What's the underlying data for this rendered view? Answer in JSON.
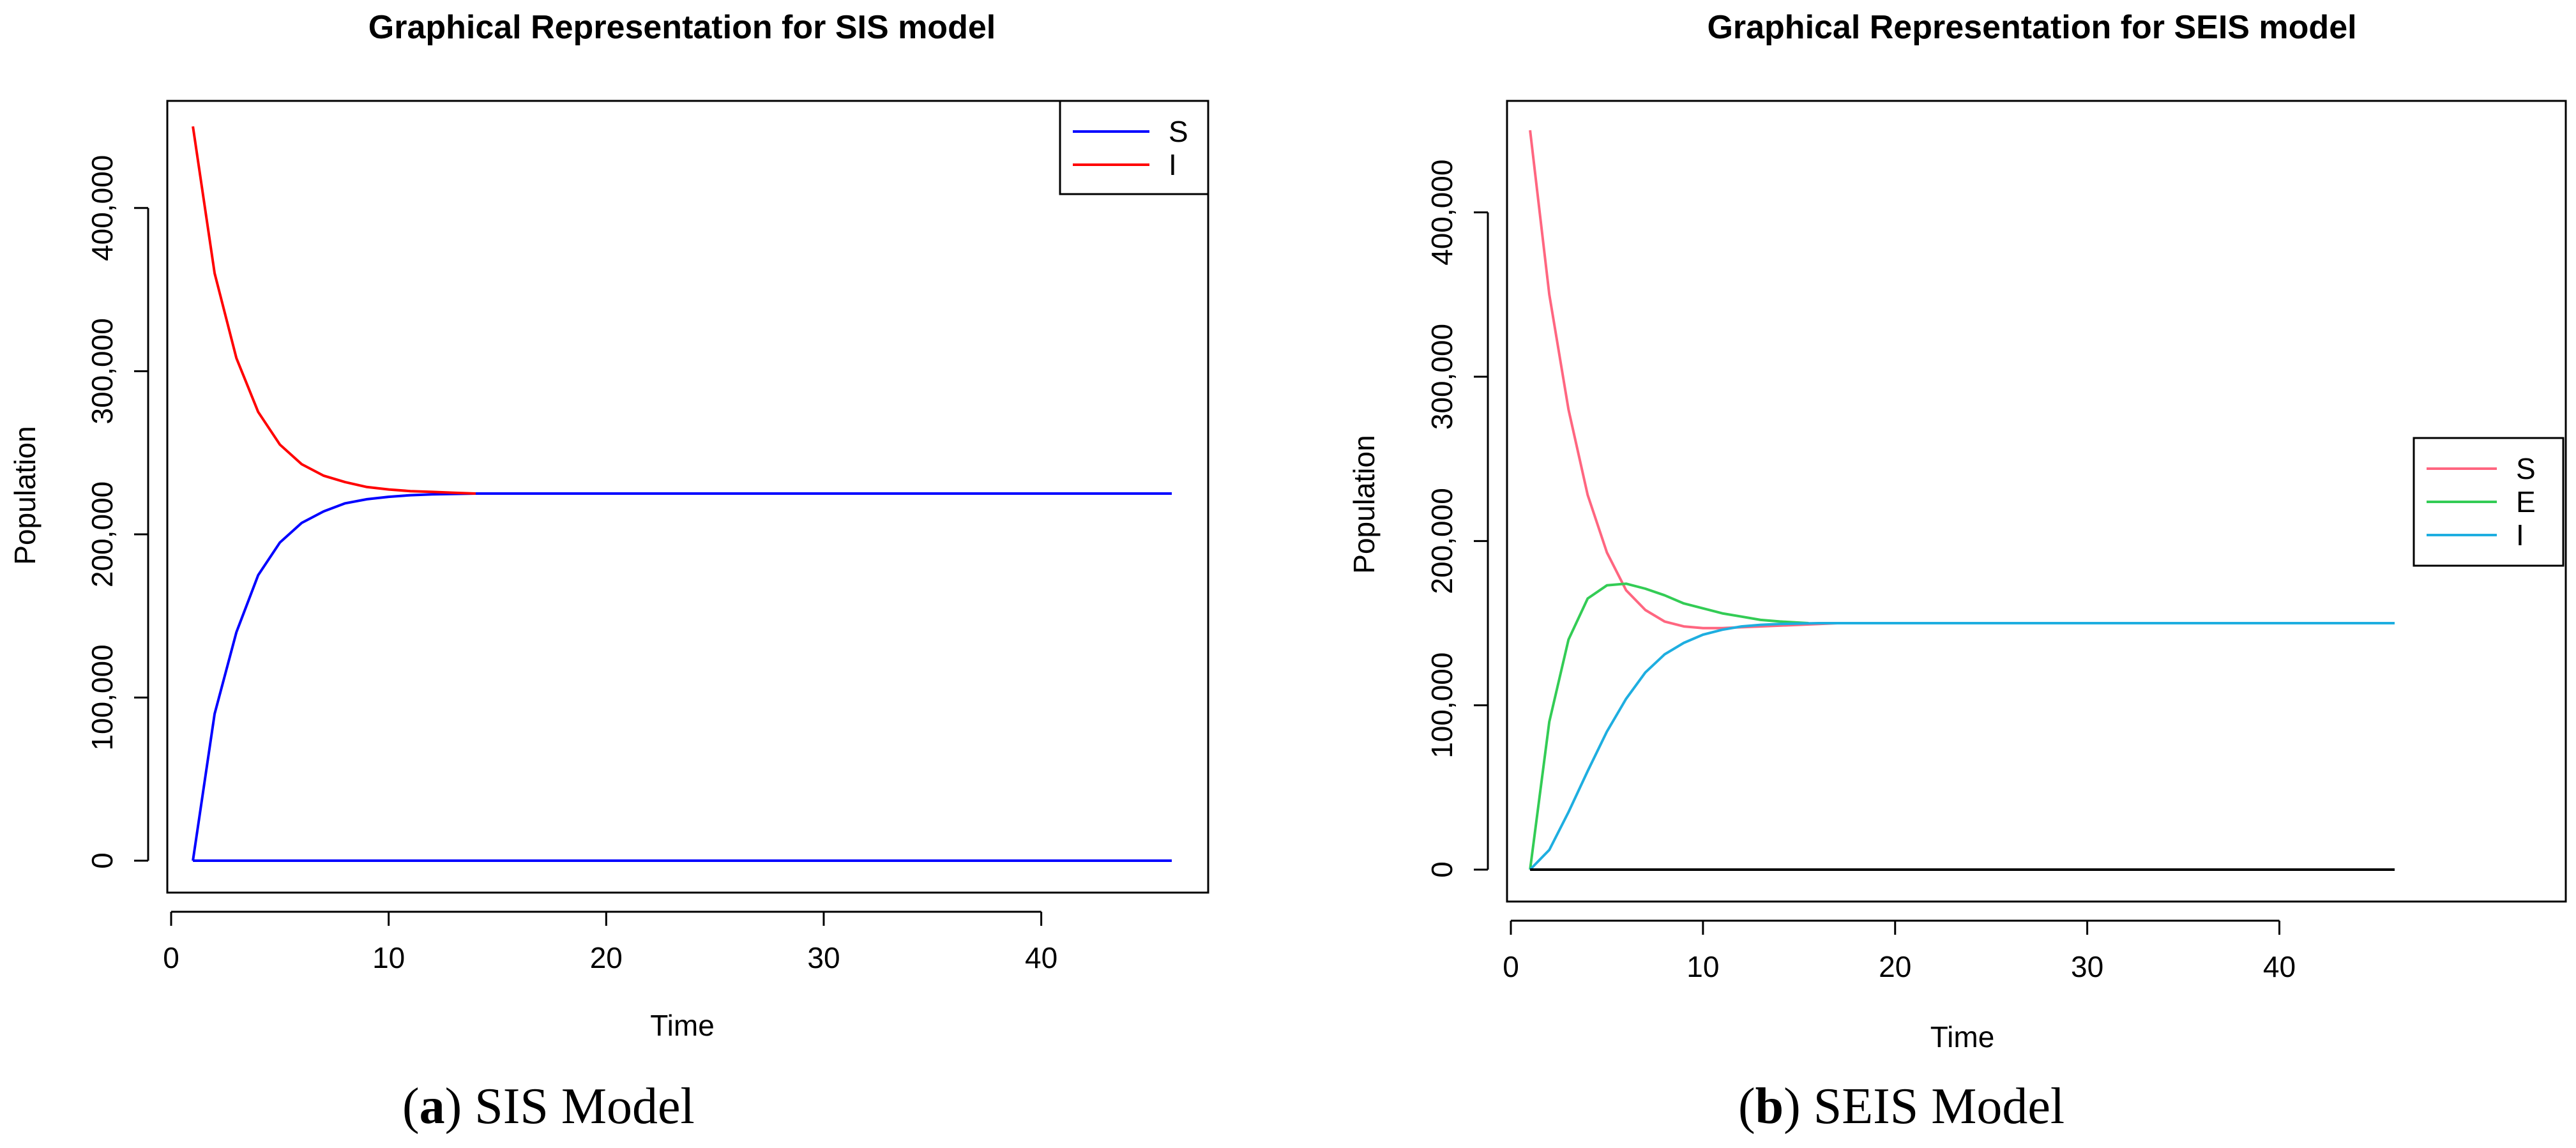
{
  "figure": {
    "caption_a_letter": "a",
    "caption_a_text": "SIS Model",
    "caption_b_letter": "b",
    "caption_b_text": "SEIS Model"
  },
  "chart_data": [
    {
      "type": "line",
      "title": "Graphical Representation for SIS model",
      "xlabel": "Time",
      "ylabel": "Population",
      "xlim": [
        0,
        46
      ],
      "ylim": [
        0,
        450000
      ],
      "xticks": [
        0,
        10,
        20,
        30,
        40
      ],
      "xtick_labels": [
        "0",
        "10",
        "20",
        "30",
        "40"
      ],
      "yticks": [
        0,
        100000,
        200000,
        300000,
        400000
      ],
      "ytick_labels": [
        "0",
        "100,000",
        "200,000",
        "300,000",
        "400,000"
      ],
      "grid": false,
      "legend": {
        "position": "top-right",
        "entries": [
          {
            "label": "S",
            "color": "#0000ff"
          },
          {
            "label": "I",
            "color": "#ff0000"
          }
        ]
      },
      "series": [
        {
          "name": "S",
          "color": "#0000ff",
          "x": [
            1,
            2,
            3,
            4,
            5,
            6,
            7,
            8,
            9,
            10,
            11,
            12,
            14,
            16,
            20,
            46
          ],
          "values": [
            0,
            90000,
            140000,
            175000,
            195000,
            207000,
            214000,
            219000,
            221500,
            223000,
            224000,
            224500,
            225000,
            225000,
            225000,
            225000
          ]
        },
        {
          "name": "I",
          "color": "#ff0000",
          "x": [
            1,
            2,
            3,
            4,
            5,
            6,
            7,
            8,
            9,
            10,
            11,
            12,
            13,
            14
          ],
          "values": [
            450000,
            360000,
            308000,
            275000,
            255000,
            243000,
            236000,
            232000,
            229000,
            227500,
            226500,
            226000,
            225500,
            225000
          ]
        },
        {
          "name": "",
          "color": "#0000ff",
          "x": [
            1,
            46
          ],
          "values": [
            0,
            0
          ]
        }
      ]
    },
    {
      "type": "line",
      "title": "Graphical Representation for SEIS model",
      "xlabel": "Time",
      "ylabel": "Population",
      "xlim": [
        0,
        46
      ],
      "ylim": [
        0,
        450000
      ],
      "xticks": [
        0,
        10,
        20,
        30,
        40
      ],
      "xtick_labels": [
        "0",
        "10",
        "20",
        "30",
        "40"
      ],
      "yticks": [
        0,
        100000,
        200000,
        300000,
        400000
      ],
      "ytick_labels": [
        "0",
        "100,000",
        "200,000",
        "300,000",
        "400,000"
      ],
      "grid": false,
      "legend": {
        "position": "right",
        "entries": [
          {
            "label": "S",
            "color": "#ff6680"
          },
          {
            "label": "E",
            "color": "#33cc55"
          },
          {
            "label": "I",
            "color": "#1eaee0"
          }
        ]
      },
      "series": [
        {
          "name": "S",
          "color": "#ff6680",
          "x": [
            1,
            2,
            3,
            4,
            5,
            6,
            7,
            8,
            9,
            10,
            11,
            12,
            13,
            15,
            17,
            18.5
          ],
          "values": [
            450000,
            350000,
            280000,
            228000,
            193000,
            170000,
            158000,
            151000,
            148000,
            147000,
            147000,
            147500,
            148000,
            149000,
            150000,
            150000
          ]
        },
        {
          "name": "E",
          "color": "#33cc55",
          "x": [
            1,
            2,
            3,
            4,
            5,
            6,
            7,
            8,
            9,
            10,
            11,
            12,
            13,
            14,
            15.5
          ],
          "values": [
            0,
            90000,
            140000,
            165000,
            173000,
            174000,
            171000,
            167000,
            162000,
            159000,
            156000,
            154000,
            152000,
            151000,
            150000
          ]
        },
        {
          "name": "I",
          "color": "#1eaee0",
          "x": [
            1,
            2,
            3,
            4,
            5,
            6,
            7,
            8,
            9,
            10,
            11,
            12,
            13,
            14,
            16,
            20,
            46
          ],
          "values": [
            0,
            12000,
            35000,
            60000,
            84000,
            104000,
            120000,
            131000,
            138000,
            143000,
            146000,
            148000,
            149000,
            149500,
            150000,
            150000,
            150000
          ]
        },
        {
          "name": "",
          "color": "#000000",
          "x": [
            1,
            46
          ],
          "values": [
            0,
            0
          ]
        }
      ]
    }
  ]
}
